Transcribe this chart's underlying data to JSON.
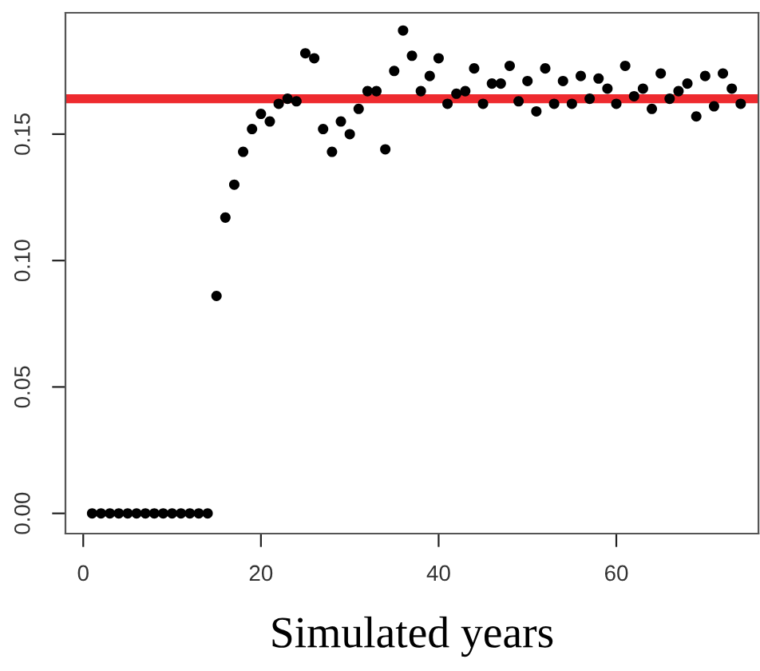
{
  "chart_data": {
    "type": "scatter",
    "xlabel": "Simulated years",
    "x": [
      1,
      2,
      3,
      4,
      5,
      6,
      7,
      8,
      9,
      10,
      11,
      12,
      13,
      14,
      15,
      16,
      17,
      18,
      19,
      20,
      21,
      22,
      23,
      24,
      25,
      26,
      27,
      28,
      29,
      30,
      31,
      32,
      33,
      34,
      35,
      36,
      37,
      38,
      39,
      40,
      41,
      42,
      43,
      44,
      45,
      46,
      47,
      48,
      49,
      50,
      51,
      52,
      53,
      54,
      55,
      56,
      57,
      58,
      59,
      60,
      61,
      62,
      63,
      64,
      65,
      66,
      67,
      68,
      69,
      70,
      71,
      72,
      73,
      74
    ],
    "series": [
      {
        "color": "#000000",
        "values": [
          0,
          0,
          0,
          0,
          0,
          0,
          0,
          0,
          0,
          0,
          0,
          0,
          0,
          0,
          0.086,
          0.117,
          0.13,
          0.143,
          0.152,
          0.158,
          0.155,
          0.162,
          0.164,
          0.163,
          0.182,
          0.18,
          0.152,
          0.143,
          0.155,
          0.15,
          0.16,
          0.167,
          0.167,
          0.144,
          0.175,
          0.191,
          0.181,
          0.167,
          0.173,
          0.18,
          0.162,
          0.166,
          0.167,
          0.176,
          0.162,
          0.17,
          0.17,
          0.177,
          0.163,
          0.171,
          0.159,
          0.176,
          0.162,
          0.171,
          0.162,
          0.173,
          0.164,
          0.172,
          0.168,
          0.162,
          0.177,
          0.165,
          0.168,
          0.16,
          0.174,
          0.164,
          0.167,
          0.17,
          0.157,
          0.173,
          0.161,
          0.174,
          0.168,
          0.162
        ]
      }
    ],
    "xlim": [
      -2,
      76
    ],
    "ylim": [
      -0.008,
      0.198
    ],
    "xticks": [
      0,
      20,
      40,
      60
    ],
    "yticks": [
      {
        "value": 0,
        "label": "0.00"
      },
      {
        "value": 0.05,
        "label": "0.05"
      },
      {
        "value": 0.1,
        "label": "0.10"
      },
      {
        "value": 0.15,
        "label": "0.15"
      }
    ],
    "ref_lines": [
      {
        "axis": "y",
        "value": 0.164,
        "color": "#ee2a2f"
      }
    ],
    "marker": "circle",
    "grid": false,
    "legend": false
  }
}
